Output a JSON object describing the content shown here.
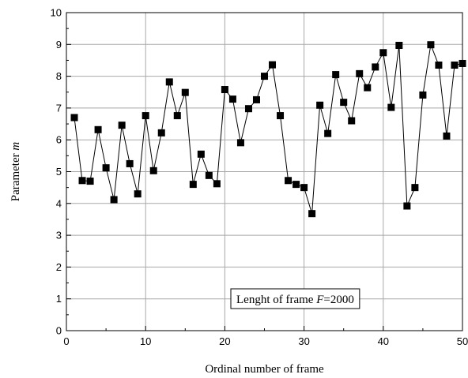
{
  "chart_data": {
    "type": "line",
    "xlabel": "Ordinal number of frame",
    "ylabel_prefix": "Parameter ",
    "ylabel_var": "m",
    "xlim": [
      0,
      50
    ],
    "ylim": [
      0,
      10
    ],
    "xticks": [
      0,
      10,
      20,
      30,
      40,
      50
    ],
    "yticks": [
      0,
      1,
      2,
      3,
      4,
      5,
      6,
      7,
      8,
      9,
      10
    ],
    "grid": true,
    "annotation": {
      "prefix": "Lenght of frame ",
      "var": "F",
      "suffix": "=2000"
    },
    "series": [
      {
        "marker": "square",
        "color": "#000000",
        "x": [
          1,
          2,
          3,
          4,
          5,
          6,
          7,
          8,
          9,
          10,
          11,
          12,
          13,
          14,
          15,
          16,
          17,
          18,
          19,
          20,
          21,
          22,
          23,
          24,
          25,
          26,
          27,
          28,
          29,
          30,
          31,
          32,
          33,
          34,
          35,
          36,
          37,
          38,
          39,
          40,
          41,
          42,
          43,
          44,
          45,
          46,
          47,
          48,
          49,
          50
        ],
        "y": [
          6.7,
          4.72,
          4.7,
          6.32,
          5.12,
          4.12,
          6.46,
          5.25,
          4.3,
          6.76,
          5.03,
          6.22,
          7.82,
          6.76,
          7.49,
          4.6,
          5.55,
          4.88,
          4.62,
          7.58,
          7.28,
          5.91,
          6.98,
          7.26,
          8.0,
          8.36,
          6.76,
          4.72,
          4.6,
          4.5,
          3.68,
          7.09,
          6.2,
          8.05,
          7.18,
          6.6,
          8.08,
          7.64,
          8.29,
          8.74,
          7.02,
          8.97,
          3.92,
          4.5,
          7.41,
          8.99,
          8.35,
          6.12,
          8.35,
          8.4
        ]
      }
    ]
  }
}
